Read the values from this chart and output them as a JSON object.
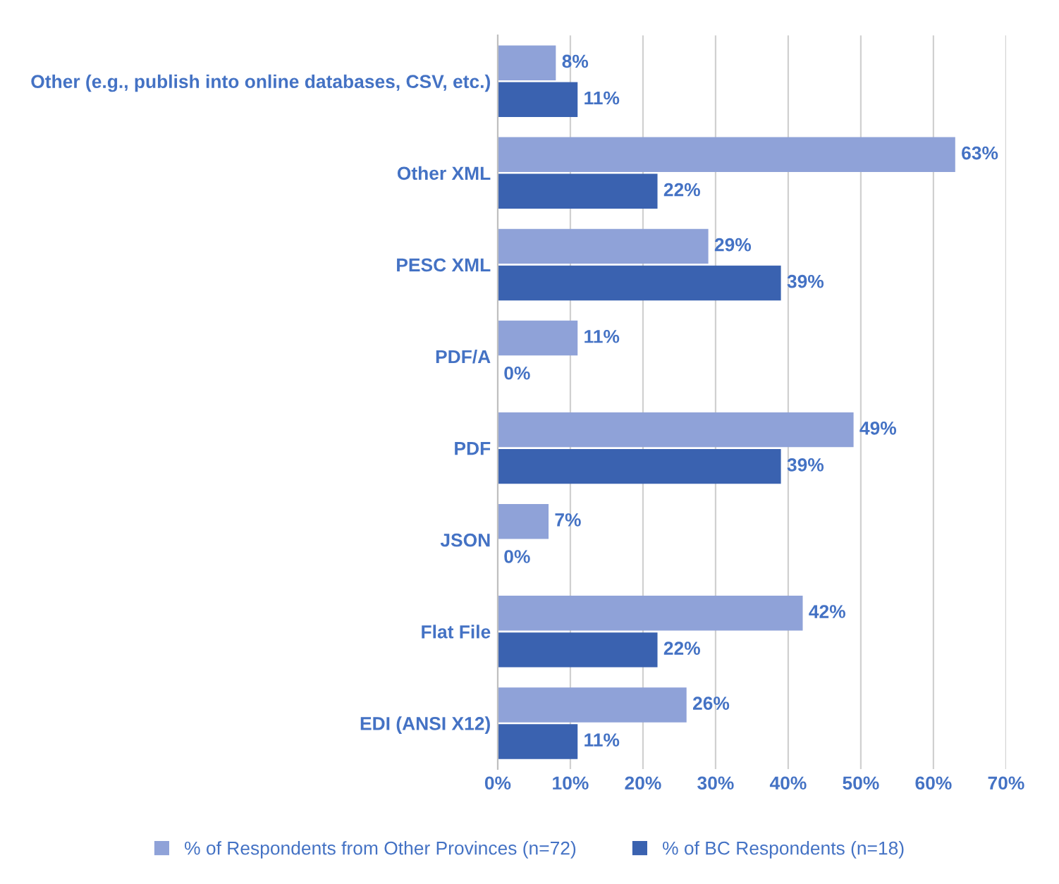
{
  "chart_data": {
    "type": "bar",
    "orientation": "horizontal",
    "categories": [
      "Other (e.g., publish into online databases, CSV, etc.)",
      "Other XML",
      "PESC XML",
      "PDF/A",
      "PDF",
      "JSON",
      "Flat File",
      "EDI (ANSI X12)"
    ],
    "series": [
      {
        "name": "% of Respondents from Other Provinces (n=72)",
        "color": "#8fa2d8",
        "values": [
          8,
          63,
          29,
          11,
          49,
          7,
          42,
          26
        ],
        "value_labels": [
          "8%",
          "63%",
          "29%",
          "11%",
          "49%",
          "7%",
          "42%",
          "26%"
        ]
      },
      {
        "name": "% of BC Respondents (n=18)",
        "color": "#3a62b0",
        "values": [
          11,
          22,
          39,
          0,
          39,
          0,
          22,
          11
        ],
        "value_labels": [
          "11%",
          "22%",
          "39%",
          "0%",
          "39%",
          "0%",
          "22%",
          "11%"
        ]
      }
    ],
    "xlim": [
      0,
      70
    ],
    "xticks": [
      {
        "value": 0,
        "label": "0%"
      },
      {
        "value": 10,
        "label": "10%"
      },
      {
        "value": 20,
        "label": "20%"
      },
      {
        "value": 30,
        "label": "30%"
      },
      {
        "value": 40,
        "label": "40%"
      },
      {
        "value": 50,
        "label": "50%"
      },
      {
        "value": 60,
        "label": "60%"
      },
      {
        "value": 70,
        "label": "70%"
      }
    ],
    "grid": "x",
    "legend": "bottom"
  }
}
